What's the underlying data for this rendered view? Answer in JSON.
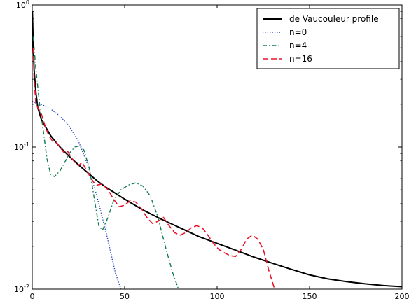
{
  "chart_data": {
    "type": "line",
    "title": "",
    "xlabel": "",
    "ylabel": "",
    "xlim": [
      0,
      200
    ],
    "ylim": [
      0.01,
      1
    ],
    "yscale": "log",
    "grid": false,
    "legend_position": "top-right",
    "x_ticks": [
      {
        "value": 0,
        "label": "0"
      },
      {
        "value": 50,
        "label": "50"
      },
      {
        "value": 100,
        "label": "100"
      },
      {
        "value": 150,
        "label": "150"
      },
      {
        "value": 200,
        "label": "200"
      }
    ],
    "y_ticks": [
      {
        "value": 1,
        "base": "10",
        "exp": "0"
      },
      {
        "value": 0.1,
        "base": "10",
        "exp": "-1"
      },
      {
        "value": 0.01,
        "base": "10",
        "exp": "-2"
      }
    ],
    "series": [
      {
        "name": "de Vaucouleur profile",
        "color": "#000000",
        "style": "solid",
        "x": [
          0.1,
          0.5,
          1,
          2,
          3,
          5,
          7,
          10,
          15,
          20,
          25,
          30,
          35,
          40,
          50,
          60,
          70,
          80,
          90,
          100,
          110,
          120,
          130,
          140,
          150,
          160,
          170,
          180,
          190,
          200
        ],
        "y": [
          0.9,
          0.55,
          0.35,
          0.24,
          0.19,
          0.155,
          0.14,
          0.12,
          0.1,
          0.086,
          0.075,
          0.066,
          0.058,
          0.052,
          0.043,
          0.036,
          0.031,
          0.027,
          0.0235,
          0.021,
          0.0188,
          0.0168,
          0.0152,
          0.0138,
          0.0126,
          0.0118,
          0.0113,
          0.0109,
          0.0106,
          0.0104
        ]
      },
      {
        "name": "n=0",
        "color": "#1f3fbf",
        "style": "dotted",
        "x": [
          0,
          2,
          5,
          10,
          15,
          20,
          25,
          30,
          35,
          40,
          45,
          48
        ],
        "y": [
          0.21,
          0.205,
          0.2,
          0.185,
          0.165,
          0.14,
          0.11,
          0.075,
          0.045,
          0.025,
          0.013,
          0.01
        ]
      },
      {
        "name": "n=4",
        "color": "#117a4f",
        "style": "dashdot",
        "x": [
          0.5,
          2,
          4,
          6,
          8,
          10,
          12,
          15,
          18,
          20,
          23,
          26,
          28,
          31,
          34,
          36,
          38,
          41,
          44,
          48,
          52,
          56,
          60,
          64,
          68,
          72,
          76,
          79
        ],
        "y": [
          0.6,
          0.35,
          0.2,
          0.13,
          0.082,
          0.064,
          0.062,
          0.068,
          0.08,
          0.09,
          0.1,
          0.102,
          0.095,
          0.07,
          0.04,
          0.028,
          0.026,
          0.032,
          0.042,
          0.05,
          0.054,
          0.056,
          0.053,
          0.045,
          0.032,
          0.02,
          0.013,
          0.0101
        ]
      },
      {
        "name": "n=16",
        "color": "#e8132a",
        "style": "dashed",
        "x": [
          0.5,
          1,
          2,
          3,
          5,
          7,
          9,
          11,
          13,
          15,
          17,
          19,
          21,
          23,
          25,
          27,
          29,
          31,
          33,
          35,
          38,
          41,
          44,
          47,
          50,
          53,
          56,
          59,
          62,
          65,
          68,
          71,
          74,
          77,
          80,
          83,
          86,
          89,
          92,
          95,
          98,
          101,
          104,
          107,
          110,
          113,
          116,
          119,
          122,
          125,
          128,
          131
        ],
        "y": [
          0.5,
          0.3,
          0.2,
          0.19,
          0.17,
          0.14,
          0.12,
          0.11,
          0.108,
          0.1,
          0.092,
          0.094,
          0.085,
          0.078,
          0.074,
          0.078,
          0.07,
          0.063,
          0.057,
          0.054,
          0.055,
          0.05,
          0.043,
          0.038,
          0.039,
          0.042,
          0.041,
          0.037,
          0.032,
          0.029,
          0.03,
          0.032,
          0.028,
          0.025,
          0.024,
          0.025,
          0.027,
          0.028,
          0.027,
          0.024,
          0.021,
          0.019,
          0.018,
          0.0172,
          0.017,
          0.019,
          0.0225,
          0.024,
          0.0225,
          0.019,
          0.0135,
          0.0101
        ]
      }
    ]
  }
}
